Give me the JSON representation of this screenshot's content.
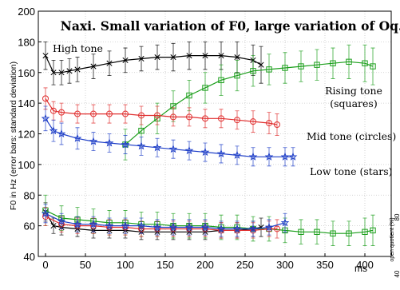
{
  "chart_data": {
    "type": "line",
    "title": "Naxi. Small variation of F0, large variation of Oq.",
    "ylabel": "F0 in Hz (error bars: standard deviation)",
    "y2label": "open quotient (%)",
    "y2ticks": [
      "80",
      "40"
    ],
    "xunit": "ms",
    "xlim": [
      0,
      410
    ],
    "ylim": [
      40,
      200
    ],
    "xticks": [
      0,
      50,
      100,
      150,
      200,
      250,
      300,
      350,
      400
    ],
    "yticks": [
      40,
      60,
      80,
      100,
      120,
      140,
      160,
      180,
      200
    ],
    "annotations": [
      {
        "id": "high",
        "lines": [
          "High tone"
        ]
      },
      {
        "id": "rising",
        "lines": [
          "Rising tone",
          "(squares)"
        ]
      },
      {
        "id": "mid",
        "lines": [
          "Mid tone (circles)"
        ]
      },
      {
        "id": "low",
        "lines": [
          "Low tone (stars)"
        ]
      }
    ],
    "f0_series": [
      {
        "id": "high",
        "marker": "x",
        "color": "#000000",
        "x": [
          0,
          10,
          20,
          30,
          40,
          60,
          80,
          100,
          120,
          140,
          160,
          180,
          200,
          220,
          240,
          260,
          270
        ],
        "y": [
          171,
          160,
          160,
          161,
          162,
          164,
          166,
          168,
          169,
          170,
          170,
          171,
          171,
          171,
          170,
          168,
          165
        ],
        "err": [
          9,
          8,
          8,
          8,
          8,
          8,
          8,
          8,
          8,
          8,
          9,
          9,
          9,
          9,
          10,
          10,
          12
        ]
      },
      {
        "id": "rising",
        "marker": "square",
        "color": "#1a9e1a",
        "x": [
          100,
          120,
          140,
          160,
          180,
          200,
          220,
          240,
          260,
          280,
          300,
          320,
          340,
          360,
          380,
          400,
          410
        ],
        "y": [
          113,
          122,
          130,
          138,
          145,
          150,
          155,
          158,
          161,
          162,
          163,
          164,
          165,
          166,
          167,
          166,
          164
        ],
        "err": [
          10,
          10,
          10,
          10,
          10,
          10,
          10,
          10,
          10,
          10,
          10,
          10,
          10,
          10,
          11,
          12,
          12
        ]
      },
      {
        "id": "mid",
        "marker": "circle",
        "color": "#e03030",
        "x": [
          0,
          10,
          20,
          40,
          60,
          80,
          100,
          120,
          140,
          160,
          180,
          200,
          220,
          240,
          260,
          280,
          290
        ],
        "y": [
          143,
          135,
          134,
          133,
          133,
          133,
          133,
          132,
          132,
          131,
          131,
          130,
          130,
          129,
          128,
          127,
          126
        ],
        "err": [
          7,
          6,
          6,
          6,
          6,
          6,
          6,
          6,
          6,
          6,
          6,
          6,
          6,
          6,
          7,
          7,
          7
        ]
      },
      {
        "id": "low",
        "marker": "star",
        "color": "#2040c8",
        "x": [
          0,
          10,
          20,
          40,
          60,
          80,
          100,
          120,
          140,
          160,
          180,
          200,
          220,
          240,
          260,
          280,
          300,
          310
        ],
        "y": [
          130,
          122,
          120,
          117,
          115,
          114,
          113,
          112,
          111,
          110,
          109,
          108,
          107,
          106,
          105,
          105,
          105,
          105
        ],
        "err": [
          8,
          7,
          7,
          7,
          6,
          6,
          6,
          6,
          6,
          6,
          6,
          6,
          6,
          6,
          6,
          6,
          6,
          6
        ]
      }
    ],
    "oq_series": [
      {
        "id": "high",
        "marker": "x",
        "color": "#000000",
        "x": [
          0,
          10,
          20,
          40,
          60,
          80,
          100,
          120,
          140,
          160,
          180,
          200,
          220,
          240,
          260,
          270
        ],
        "y": [
          69,
          60,
          59,
          58,
          57,
          57,
          57,
          56,
          56,
          56,
          56,
          56,
          57,
          57,
          58,
          59
        ],
        "err": [
          6,
          5,
          5,
          5,
          5,
          5,
          5,
          5,
          5,
          5,
          5,
          5,
          5,
          5,
          5,
          6
        ]
      },
      {
        "id": "rising",
        "marker": "square",
        "color": "#1a9e1a",
        "x": [
          0,
          20,
          40,
          60,
          80,
          100,
          120,
          140,
          160,
          180,
          200,
          220,
          240,
          260,
          280,
          300,
          320,
          340,
          360,
          380,
          400,
          410
        ],
        "y": [
          70,
          65,
          64,
          63,
          62,
          62,
          61,
          61,
          60,
          60,
          60,
          59,
          59,
          58,
          58,
          57,
          56,
          56,
          55,
          55,
          56,
          57
        ],
        "err": [
          10,
          8,
          8,
          8,
          8,
          8,
          8,
          8,
          8,
          8,
          8,
          8,
          8,
          8,
          8,
          8,
          8,
          8,
          8,
          8,
          9,
          10
        ]
      },
      {
        "id": "mid",
        "marker": "circle",
        "color": "#e03030",
        "x": [
          0,
          20,
          40,
          60,
          80,
          100,
          120,
          140,
          160,
          180,
          200,
          220,
          240,
          260,
          280,
          290
        ],
        "y": [
          66,
          61,
          60,
          60,
          59,
          59,
          58,
          58,
          58,
          58,
          58,
          57,
          57,
          57,
          58,
          58
        ],
        "err": [
          6,
          5,
          5,
          5,
          5,
          5,
          5,
          5,
          5,
          5,
          5,
          5,
          5,
          5,
          5,
          6
        ]
      },
      {
        "id": "low",
        "marker": "star",
        "color": "#2040c8",
        "x": [
          0,
          20,
          40,
          60,
          80,
          100,
          120,
          140,
          160,
          180,
          200,
          220,
          240,
          260,
          280,
          300
        ],
        "y": [
          68,
          63,
          61,
          61,
          60,
          60,
          60,
          59,
          59,
          59,
          59,
          58,
          58,
          58,
          59,
          62
        ],
        "err": [
          6,
          5,
          5,
          5,
          5,
          5,
          5,
          5,
          5,
          5,
          5,
          5,
          5,
          5,
          5,
          6
        ]
      }
    ]
  }
}
